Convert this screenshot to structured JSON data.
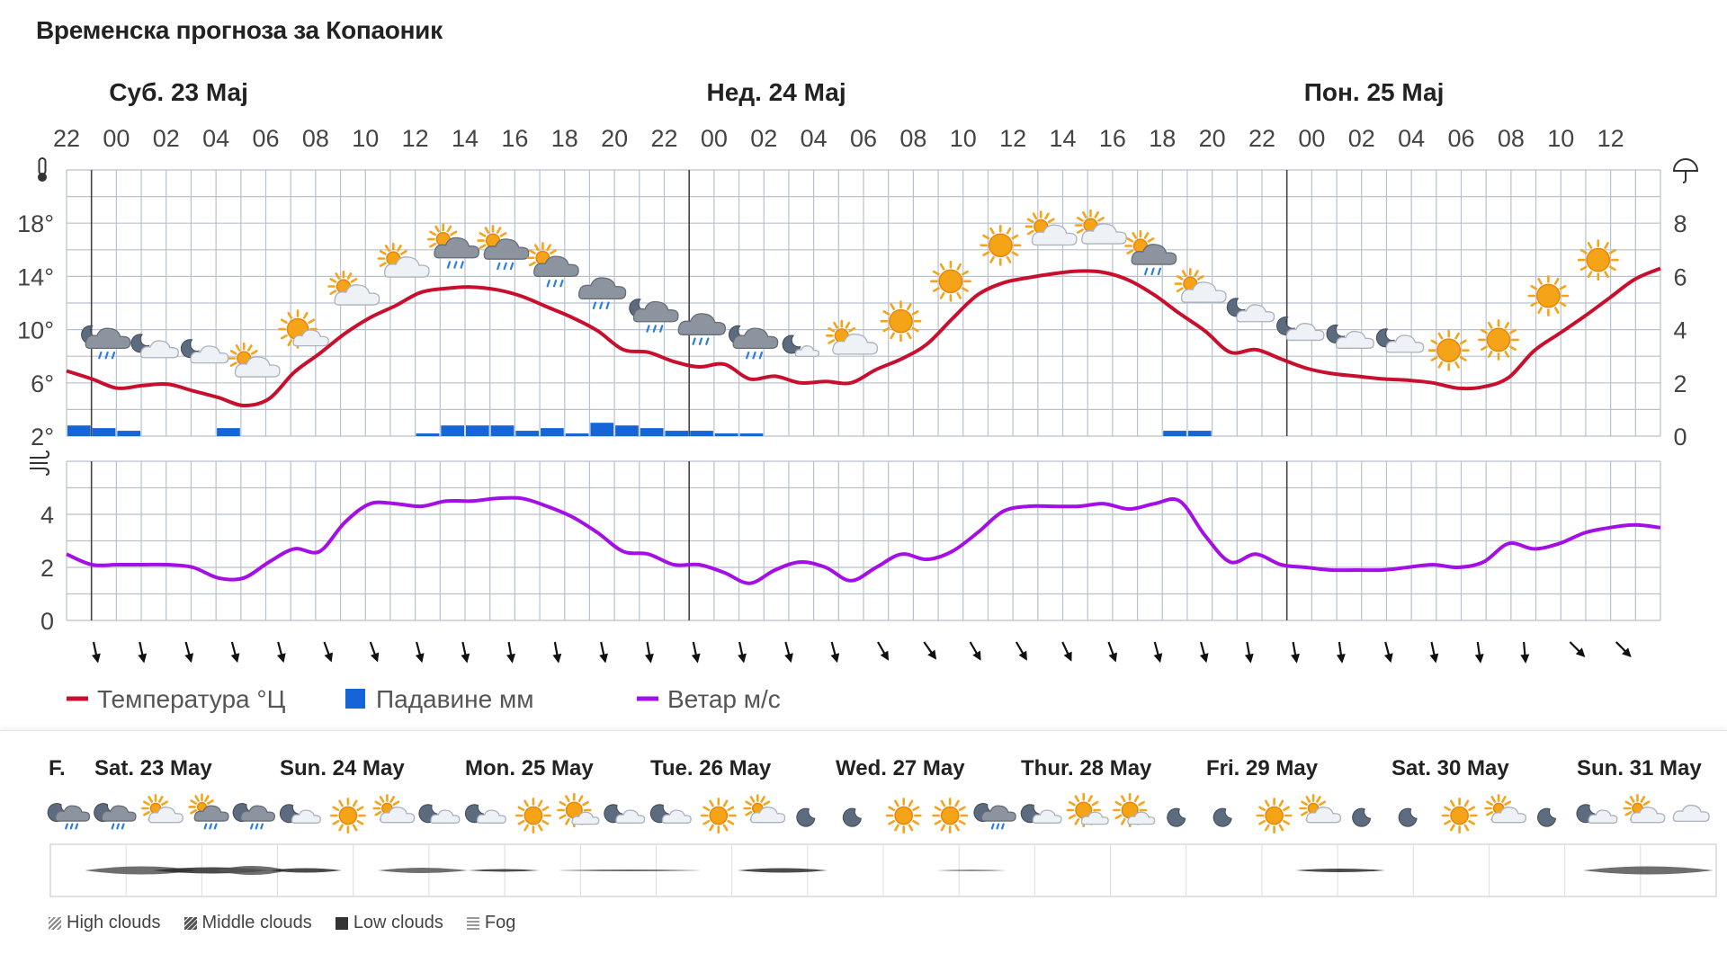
{
  "title": "Временска прогноза за Копаоник",
  "colors": {
    "temperature": "#c8102e",
    "precipitation": "#1565d8",
    "wind": "#a40fe6",
    "grid": "#b9c1cc"
  },
  "chart_data": [
    {
      "type": "line",
      "title": "",
      "days": [
        "Суб. 23 Мај",
        "Нед. 24 Мај",
        "Пон. 25 Мај"
      ],
      "hour_labels": [
        "22",
        "00",
        "02",
        "04",
        "06",
        "08",
        "10",
        "12",
        "14",
        "16",
        "18",
        "20",
        "22",
        "00",
        "02",
        "04",
        "06",
        "08",
        "10",
        "12",
        "14",
        "16",
        "18",
        "20",
        "22",
        "00",
        "02",
        "04",
        "06",
        "08",
        "10",
        "12"
      ],
      "temp_axis": {
        "ticks": [
          "2°",
          "6°",
          "10°",
          "14°",
          "18°"
        ],
        "range": [
          2,
          22
        ]
      },
      "precip_axis": {
        "ticks": [
          "0",
          "2",
          "4",
          "6",
          "8"
        ],
        "range": [
          0,
          10
        ]
      },
      "hours_from_start": [
        0,
        1,
        2,
        3,
        4,
        5,
        6,
        7,
        8,
        9,
        10,
        11,
        12,
        13,
        14,
        15,
        16,
        17,
        18,
        19,
        20,
        21,
        22,
        23,
        24,
        25,
        26,
        27,
        28,
        29,
        30,
        31,
        32,
        33,
        34,
        35,
        36,
        37,
        38,
        39,
        40,
        41,
        42,
        43,
        44,
        45,
        46,
        47,
        48,
        49,
        50,
        51,
        52,
        53,
        54,
        55,
        56,
        57,
        58,
        59,
        60,
        61,
        62,
        63
      ],
      "series": [
        {
          "name": "Температура °Ц",
          "unit": "°C",
          "values": [
            6.9,
            6.3,
            5.6,
            5.8,
            5.9,
            5.4,
            4.9,
            4.3,
            4.8,
            6.8,
            8.2,
            9.7,
            10.9,
            11.8,
            12.8,
            13.1,
            13.2,
            13.0,
            12.5,
            11.7,
            10.9,
            9.9,
            8.5,
            8.3,
            7.6,
            7.2,
            7.4,
            6.3,
            6.5,
            6.0,
            6.1,
            6.0,
            7.0,
            7.8,
            8.9,
            10.8,
            12.6,
            13.5,
            13.9,
            14.2,
            14.4,
            14.3,
            13.7,
            12.6,
            11.2,
            9.9,
            8.3,
            8.5,
            7.8,
            7.1,
            6.7,
            6.5,
            6.3,
            6.2,
            6.0,
            5.6,
            5.7,
            6.4,
            8.4,
            9.7,
            11.0,
            12.4,
            13.8,
            14.6
          ]
        },
        {
          "name": "Падавине мм",
          "unit": "mm",
          "values": [
            0.4,
            0.3,
            0.2,
            0,
            0,
            0,
            0.3,
            0,
            0,
            0,
            0,
            0,
            0,
            0,
            0.1,
            0.4,
            0.4,
            0.4,
            0.2,
            0.3,
            0.1,
            0.5,
            0.4,
            0.3,
            0.2,
            0.2,
            0.1,
            0.1,
            0,
            0,
            0,
            0,
            0,
            0,
            0,
            0,
            0,
            0,
            0,
            0,
            0,
            0,
            0,
            0,
            0.2,
            0.2,
            0,
            0,
            0,
            0,
            0,
            0,
            0,
            0,
            0,
            0,
            0,
            0,
            0,
            0,
            0,
            0,
            0,
            0
          ]
        }
      ]
    },
    {
      "type": "line",
      "title": "",
      "y_axis": {
        "ticks": [
          "0",
          "2",
          "4"
        ],
        "range": [
          0,
          6
        ]
      },
      "series": [
        {
          "name": "Ветар м/с",
          "unit": "m/s",
          "values": [
            2.5,
            2.1,
            2.1,
            2.1,
            2.1,
            2.0,
            1.6,
            1.6,
            2.2,
            2.7,
            2.6,
            3.7,
            4.4,
            4.4,
            4.3,
            4.5,
            4.5,
            4.6,
            4.6,
            4.3,
            3.9,
            3.3,
            2.6,
            2.5,
            2.1,
            2.1,
            1.8,
            1.4,
            1.9,
            2.2,
            2.0,
            1.5,
            2.0,
            2.5,
            2.3,
            2.6,
            3.3,
            4.1,
            4.3,
            4.3,
            4.3,
            4.4,
            4.2,
            4.4,
            4.5,
            3.2,
            2.2,
            2.5,
            2.1,
            2.0,
            1.9,
            1.9,
            1.9,
            2.0,
            2.1,
            2.0,
            2.2,
            2.9,
            2.7,
            2.9,
            3.3,
            3.5,
            3.6,
            3.5
          ]
        }
      ]
    }
  ],
  "wind_arrow_rotations_deg": [
    -12,
    -12,
    -15,
    -15,
    -15,
    -20,
    -20,
    -15,
    -12,
    -10,
    -10,
    -12,
    -10,
    -12,
    -12,
    -15,
    -15,
    -30,
    -35,
    -30,
    -30,
    -25,
    -20,
    -15,
    -15,
    -10,
    -10,
    -8,
    -15,
    -12,
    -8,
    -5,
    -45,
    -45
  ],
  "weather_icons_3day": [
    "partly-cloudy-night-rain-icon",
    "partly-cloudy-night-icon",
    "partly-cloudy-night-icon",
    "partly-cloudy-day-icon",
    "partly-sunny-icon",
    "partly-cloudy-day-icon",
    "partly-cloudy-day-icon",
    "partly-cloudy-rain-icon",
    "partly-cloudy-rain-icon",
    "partly-cloudy-rain-icon",
    "cloudy-rain-icon",
    "partly-cloudy-night-rain-icon",
    "cloudy-rain-icon",
    "partly-cloudy-night-rain-icon",
    "clear-night-icon",
    "partly-cloudy-day-icon",
    "sun-icon",
    "sun-icon",
    "sun-icon",
    "partly-cloudy-day-icon",
    "partly-cloudy-day-icon",
    "partly-cloudy-rain-icon",
    "partly-cloudy-day-icon",
    "partly-cloudy-night-icon",
    "partly-cloudy-night-icon",
    "partly-cloudy-night-icon",
    "partly-cloudy-night-icon",
    "sun-icon",
    "sun-icon",
    "sun-icon",
    "sun-icon"
  ],
  "legend": [
    {
      "label": "Температура °Ц",
      "color": "#c8102e",
      "kind": "line"
    },
    {
      "label": "Падавине мм",
      "color": "#1565d8",
      "kind": "bar"
    },
    {
      "label": "Ветар м/с",
      "color": "#a40fe6",
      "kind": "line"
    }
  ],
  "meteogram": {
    "prefix": "F.",
    "days": [
      "Sat. 23 May",
      "Sun. 24 May",
      "Mon. 25 May",
      "Tue. 26 May",
      "Wed. 27 May",
      "Thur. 28 May",
      "Fri. 29 May",
      "Sat. 30 May",
      "Sun. 31 May"
    ],
    "icons": [
      "cloudy-rain-night-icon",
      "cloudy-rain-night-icon",
      "partly-cloudy-day-icon",
      "cloudy-rain-day-icon",
      "cloudy-rain-night-icon",
      "partly-cloudy-night-icon",
      "sun-icon",
      "partly-cloudy-day-icon",
      "partly-cloudy-night-icon",
      "partly-cloudy-night-icon",
      "sun-icon",
      "partly-sunny-icon",
      "partly-cloudy-night-icon",
      "partly-cloudy-night-icon",
      "sun-icon",
      "partly-cloudy-day-icon",
      "moon-icon",
      "moon-icon",
      "sun-icon",
      "sun-icon",
      "cloudy-rain-night-icon",
      "partly-cloudy-night-icon",
      "partly-sunny-icon",
      "partly-sunny-icon",
      "moon-icon",
      "moon-icon",
      "sun-icon",
      "partly-cloudy-day-icon",
      "moon-icon",
      "moon-icon",
      "sun-icon",
      "partly-cloudy-day-icon",
      "moon-icon",
      "partly-cloudy-night-icon",
      "partly-cloudy-day-icon",
      "cloud-icon"
    ],
    "legend": [
      "High clouds",
      "Middle clouds",
      "Low clouds",
      "Fog"
    ]
  }
}
